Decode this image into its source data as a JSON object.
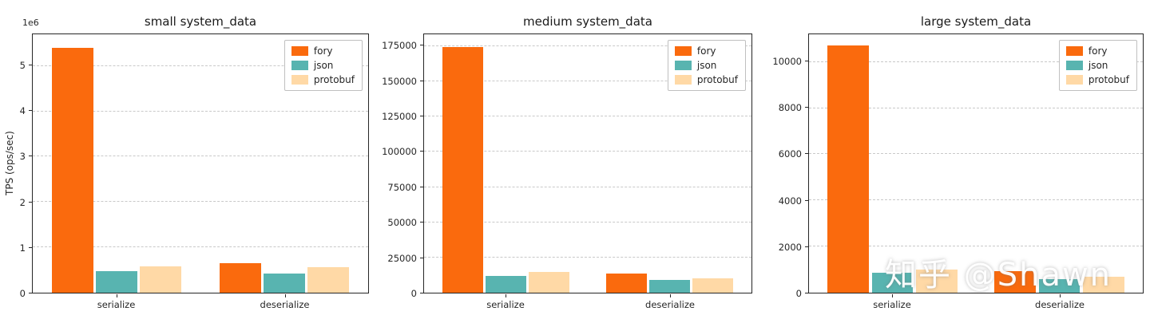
{
  "watermark": "知乎 @Shawn",
  "colors": {
    "fory": "#fa6a0d",
    "json": "#58b4b0",
    "protobuf": "#ffd9a6",
    "grid": "#c9c9c9",
    "spine": "#262626"
  },
  "legend_labels": [
    "fory",
    "json",
    "protobuf"
  ],
  "chart_data": [
    {
      "type": "bar",
      "title": "small system_data",
      "ylabel": "TPS (ops/sec)",
      "offset_text": "1e6",
      "categories": [
        "serialize",
        "deserialize"
      ],
      "series": [
        {
          "name": "fory",
          "color": "#fa6a0d",
          "values": [
            5400000,
            650000
          ]
        },
        {
          "name": "json",
          "color": "#58b4b0",
          "values": [
            470000,
            430000
          ]
        },
        {
          "name": "protobuf",
          "color": "#ffd9a6",
          "values": [
            580000,
            560000
          ]
        }
      ],
      "yticks": [
        0,
        1000000,
        2000000,
        3000000,
        4000000,
        5000000
      ],
      "ytick_labels": [
        "0",
        "1",
        "2",
        "3",
        "4",
        "5"
      ],
      "ylim": [
        0,
        5700000
      ],
      "grid": true,
      "legend_position": "upper right"
    },
    {
      "type": "bar",
      "title": "medium system_data",
      "categories": [
        "serialize",
        "deserialize"
      ],
      "series": [
        {
          "name": "fory",
          "color": "#fa6a0d",
          "values": [
            174500,
            13500
          ]
        },
        {
          "name": "json",
          "color": "#58b4b0",
          "values": [
            12000,
            9000
          ]
        },
        {
          "name": "protobuf",
          "color": "#ffd9a6",
          "values": [
            14500,
            10000
          ]
        }
      ],
      "yticks": [
        0,
        25000,
        50000,
        75000,
        100000,
        125000,
        150000,
        175000
      ],
      "ytick_labels": [
        "0",
        "25000",
        "50000",
        "75000",
        "100000",
        "125000",
        "150000",
        "175000"
      ],
      "ylim": [
        0,
        183500
      ],
      "grid": true,
      "legend_position": "upper right"
    },
    {
      "type": "bar",
      "title": "large system_data",
      "categories": [
        "serialize",
        "deserialize"
      ],
      "series": [
        {
          "name": "fory",
          "color": "#fa6a0d",
          "values": [
            10700,
            930
          ]
        },
        {
          "name": "json",
          "color": "#58b4b0",
          "values": [
            880,
            600
          ]
        },
        {
          "name": "protobuf",
          "color": "#ffd9a6",
          "values": [
            1000,
            680
          ]
        }
      ],
      "yticks": [
        0,
        2000,
        4000,
        6000,
        8000,
        10000
      ],
      "ytick_labels": [
        "0",
        "2000",
        "4000",
        "6000",
        "8000",
        "10000"
      ],
      "ylim": [
        0,
        11200
      ],
      "grid": true,
      "legend_position": "upper right"
    }
  ]
}
